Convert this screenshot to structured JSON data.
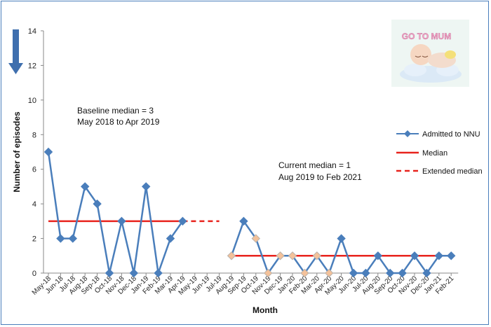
{
  "chart_data": {
    "type": "line",
    "xlabel": "Month",
    "ylabel": "Number of episodes",
    "ylim": [
      0,
      14
    ],
    "yticks": [
      0,
      2,
      4,
      6,
      8,
      10,
      12,
      14
    ],
    "categories": [
      "May-18",
      "Jun-18",
      "Jul-18",
      "Aug-18",
      "Sep-18",
      "Oct-18",
      "Nov-18",
      "Dec-18",
      "Jan-19",
      "Feb-19",
      "Mar-19",
      "Apr-19",
      "May-19",
      "Jun-19",
      "Jul-19",
      "Aug-19",
      "Sep-19",
      "Oct-19",
      "Nov-19",
      "Dec-19",
      "Jan-20",
      "Feb-20",
      "Mar-20",
      "Apr-20",
      "May-20",
      "Jun-20",
      "Jul-20",
      "Aug-20",
      "Sep-20",
      "Oct-20",
      "Nov-20",
      "Dec-20",
      "Jan-21",
      "Feb-21"
    ],
    "series": [
      {
        "name": "Admitted to NNU",
        "color": "#4a7ebb",
        "values": [
          7,
          2,
          2,
          5,
          4,
          0,
          3,
          0,
          5,
          0,
          2,
          3,
          null,
          null,
          null,
          1,
          3,
          2,
          0,
          1,
          1,
          0,
          1,
          0,
          2,
          0,
          0,
          1,
          0,
          0,
          1,
          0,
          1,
          1
        ],
        "highlighted_points": [
          15,
          17,
          18,
          19,
          20,
          21,
          22,
          23
        ],
        "highlight_color": "#f4c29a"
      },
      {
        "name": "Median",
        "color": "#e8231d",
        "segments": [
          {
            "from": "May-18",
            "to": "Apr-19",
            "value": 3
          },
          {
            "from": "Aug-19",
            "to": "Feb-21",
            "value": 1
          }
        ]
      },
      {
        "name": "Extended median",
        "color": "#e8231d",
        "style": "dashed",
        "segments": [
          {
            "from": "Apr-19",
            "to": "Jul-19",
            "value": 3
          },
          {
            "from": "Nov-19",
            "to": "Feb-21",
            "value": 1
          }
        ]
      }
    ],
    "annotations": {
      "baseline_line1": "Baseline median = 3",
      "baseline_line2": "May 2018 to Apr 2019",
      "current_line1": "Current median = 1",
      "current_line2": "Aug 2019 to Feb 2021"
    },
    "legend_position": "right",
    "grid": false
  },
  "icons": {
    "direction_arrow": "down-arrow-icon",
    "logo": "sleeping-baby-logo-icon"
  },
  "logo": {
    "text": "GO TO MUM"
  }
}
